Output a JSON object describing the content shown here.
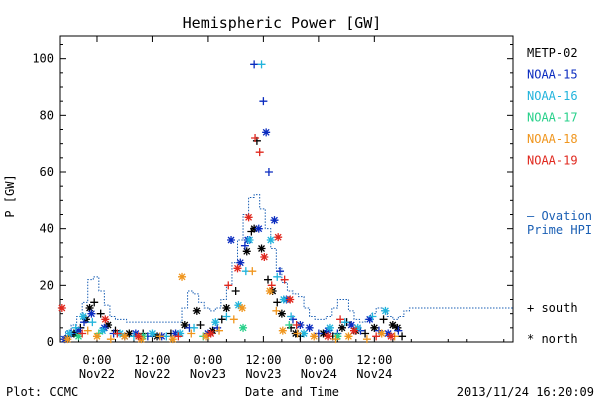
{
  "chart_data": {
    "type": "scatter",
    "title": "Hemispheric Power [GW]",
    "xlabel": "Date and Time",
    "ylabel": "P [GW]",
    "x_unit": "hours",
    "xlim": [
      -4,
      45
    ],
    "ylim": [
      0,
      108
    ],
    "yticks": [
      0,
      20,
      40,
      60,
      80,
      100
    ],
    "xticks": [
      {
        "x": 0,
        "line1": "0:00",
        "line2": "Nov22"
      },
      {
        "x": 6,
        "line1": "12:00",
        "line2": "Nov22"
      },
      {
        "x": 12,
        "line1": "0:00",
        "line2": "Nov23"
      },
      {
        "x": 18,
        "line1": "12:00",
        "line2": "Nov23"
      },
      {
        "x": 24,
        "line1": "0:00",
        "line2": "Nov24"
      },
      {
        "x": 30,
        "line1": "12:00",
        "line2": "Nov24"
      }
    ],
    "legend": {
      "placement": "right",
      "satellites": [
        {
          "name": "METP-02",
          "color": "#000000"
        },
        {
          "name": "NOAA-15",
          "color": "#0a2bbf"
        },
        {
          "name": "NOAA-16",
          "color": "#22b4dc"
        },
        {
          "name": "NOAA-17",
          "color": "#27d08a"
        },
        {
          "name": "NOAA-18",
          "color": "#f0961e"
        },
        {
          "name": "NOAA-19",
          "color": "#e0281e"
        }
      ],
      "ovation_label_line1": "— Ovation",
      "ovation_label_line2": "Prime HPI",
      "ovation_color": "#1a5fb4",
      "south_label": "+ south",
      "north_label": "* north"
    },
    "ovation": [
      [
        -4,
        2
      ],
      [
        -3.4,
        4
      ],
      [
        -2.8,
        6
      ],
      [
        -2.2,
        9
      ],
      [
        -1.6,
        14
      ],
      [
        -1,
        22
      ],
      [
        -0.4,
        23
      ],
      [
        0.2,
        18
      ],
      [
        0.8,
        13
      ],
      [
        1.4,
        9
      ],
      [
        2,
        8
      ],
      [
        2.6,
        8
      ],
      [
        3.2,
        7
      ],
      [
        3.8,
        7
      ],
      [
        4.4,
        7
      ],
      [
        5,
        7
      ],
      [
        5.6,
        7
      ],
      [
        6.2,
        7
      ],
      [
        6.8,
        7
      ],
      [
        7.4,
        7
      ],
      [
        8,
        7
      ],
      [
        8.6,
        7
      ],
      [
        9.2,
        12
      ],
      [
        9.8,
        18
      ],
      [
        10.4,
        17
      ],
      [
        11,
        14
      ],
      [
        11.6,
        12
      ],
      [
        12.2,
        11
      ],
      [
        12.8,
        12
      ],
      [
        13.4,
        15
      ],
      [
        14,
        20
      ],
      [
        14.6,
        28
      ],
      [
        15.2,
        36
      ],
      [
        15.8,
        45
      ],
      [
        16.4,
        51
      ],
      [
        17,
        52
      ],
      [
        17.6,
        47
      ],
      [
        18.2,
        40
      ],
      [
        18.8,
        33
      ],
      [
        19.4,
        26
      ],
      [
        20,
        21
      ],
      [
        20.6,
        18
      ],
      [
        21.2,
        17
      ],
      [
        21.8,
        16
      ],
      [
        22.4,
        12
      ],
      [
        23,
        9
      ],
      [
        23.6,
        8
      ],
      [
        24.2,
        8
      ],
      [
        24.8,
        9
      ],
      [
        25.4,
        12
      ],
      [
        26,
        15
      ],
      [
        26.6,
        15
      ],
      [
        27.2,
        11
      ],
      [
        27.8,
        8
      ],
      [
        28.4,
        7
      ],
      [
        29,
        8
      ],
      [
        29.6,
        10
      ],
      [
        30.2,
        12
      ],
      [
        30.8,
        11
      ],
      [
        31.4,
        9
      ],
      [
        32,
        8
      ],
      [
        32.6,
        9
      ],
      [
        33.2,
        11
      ],
      [
        33.8,
        12
      ],
      [
        34.4,
        12
      ]
    ],
    "series": [
      {
        "name": "METP-02",
        "color": "#000000",
        "points": [
          [
            -3,
            2,
            "+"
          ],
          [
            -2.5,
            3,
            "*"
          ],
          [
            -1.8,
            5,
            "+"
          ],
          [
            -1.2,
            8,
            "*"
          ],
          [
            -0.8,
            12,
            "*"
          ],
          [
            -0.3,
            14,
            "+"
          ],
          [
            0.4,
            10,
            "+"
          ],
          [
            1.2,
            6,
            "*"
          ],
          [
            2.0,
            4,
            "+"
          ],
          [
            3.5,
            3,
            "*"
          ],
          [
            5.0,
            3,
            "+"
          ],
          [
            6.5,
            2,
            "*"
          ],
          [
            8.0,
            3,
            "+"
          ],
          [
            9.5,
            6,
            "*"
          ],
          [
            10.8,
            11,
            "*"
          ],
          [
            11.2,
            6,
            "+"
          ],
          [
            12.5,
            4,
            "*"
          ],
          [
            13.5,
            8,
            "+"
          ],
          [
            14.0,
            12,
            "*"
          ],
          [
            15.0,
            18,
            "+"
          ],
          [
            16.2,
            32,
            "*"
          ],
          [
            16.7,
            39,
            "+"
          ],
          [
            17.0,
            40,
            "*"
          ],
          [
            17.3,
            71,
            "+"
          ],
          [
            17.8,
            33,
            "*"
          ],
          [
            18.5,
            22,
            "+"
          ],
          [
            19.0,
            18,
            "*"
          ],
          [
            19.5,
            14,
            "+"
          ],
          [
            20.0,
            10,
            "*"
          ],
          [
            21.0,
            5,
            "+"
          ],
          [
            21.5,
            3,
            "*"
          ],
          [
            22.0,
            2,
            "+"
          ],
          [
            24.5,
            3,
            "*"
          ],
          [
            25.5,
            2,
            "+"
          ],
          [
            26.5,
            5,
            "*"
          ],
          [
            27.0,
            7,
            "+"
          ],
          [
            28.0,
            4,
            "*"
          ],
          [
            29.0,
            3,
            "+"
          ],
          [
            30.0,
            5,
            "*"
          ],
          [
            31.0,
            8,
            "+"
          ],
          [
            32.0,
            6,
            "*"
          ],
          [
            32.5,
            5,
            "*"
          ],
          [
            33.0,
            2,
            "+"
          ]
        ]
      },
      {
        "name": "NOAA-15",
        "color": "#0a2bbf",
        "points": [
          [
            -3.5,
            1,
            "*"
          ],
          [
            -2.8,
            3,
            "+"
          ],
          [
            -2.0,
            4,
            "*"
          ],
          [
            -1.4,
            7,
            "+"
          ],
          [
            -0.6,
            10,
            "*"
          ],
          [
            0.8,
            5,
            "*"
          ],
          [
            1.8,
            3,
            "+"
          ],
          [
            3.0,
            2,
            "*"
          ],
          [
            4.2,
            3,
            "*"
          ],
          [
            5.5,
            2,
            "+"
          ],
          [
            7.0,
            2,
            "*"
          ],
          [
            8.5,
            3,
            "*"
          ],
          [
            10.0,
            5,
            "+"
          ],
          [
            12.0,
            3,
            "*"
          ],
          [
            13.0,
            5,
            "+"
          ],
          [
            14.5,
            36,
            "*"
          ],
          [
            15.5,
            28,
            "*"
          ],
          [
            16.0,
            34,
            "+"
          ],
          [
            16.3,
            36,
            "*"
          ],
          [
            17.0,
            98,
            "+"
          ],
          [
            17.5,
            40,
            "*"
          ],
          [
            18.0,
            85,
            "+"
          ],
          [
            18.3,
            74,
            "*"
          ],
          [
            18.6,
            60,
            "+"
          ],
          [
            19.2,
            43,
            "*"
          ],
          [
            19.8,
            25,
            "+"
          ],
          [
            20.5,
            15,
            "*"
          ],
          [
            21.2,
            8,
            "+"
          ],
          [
            22.0,
            6,
            "*"
          ],
          [
            23.0,
            5,
            "*"
          ],
          [
            24.0,
            3,
            "+"
          ],
          [
            25.0,
            4,
            "*"
          ],
          [
            26.0,
            3,
            "+"
          ],
          [
            27.5,
            6,
            "*"
          ],
          [
            28.5,
            4,
            "+"
          ],
          [
            29.5,
            8,
            "*"
          ],
          [
            30.5,
            4,
            "+"
          ],
          [
            31.5,
            3,
            "*"
          ],
          [
            32.6,
            4,
            "+"
          ]
        ]
      },
      {
        "name": "NOAA-16",
        "color": "#22b4dc",
        "points": [
          [
            -3.0,
            3,
            "*"
          ],
          [
            -2.3,
            5,
            "+"
          ],
          [
            -1.5,
            9,
            "*"
          ],
          [
            -0.5,
            7,
            "+"
          ],
          [
            0.6,
            4,
            "*"
          ],
          [
            2.5,
            3,
            "*"
          ],
          [
            4.0,
            2,
            "+"
          ],
          [
            6.0,
            3,
            "*"
          ],
          [
            7.5,
            2,
            "+"
          ],
          [
            9.0,
            3,
            "*"
          ],
          [
            10.5,
            5,
            "+"
          ],
          [
            12.8,
            7,
            "*"
          ],
          [
            14.0,
            9,
            "+"
          ],
          [
            15.3,
            13,
            "*"
          ],
          [
            16.1,
            25,
            "+"
          ],
          [
            16.5,
            36,
            "*"
          ],
          [
            17.8,
            98,
            "+"
          ],
          [
            18.8,
            36,
            "*"
          ],
          [
            19.5,
            23,
            "+"
          ],
          [
            20.2,
            15,
            "*"
          ],
          [
            21.0,
            9,
            "+"
          ],
          [
            22.4,
            3,
            "*"
          ],
          [
            25.2,
            5,
            "*"
          ],
          [
            26.8,
            7,
            "+"
          ],
          [
            28.2,
            5,
            "*"
          ],
          [
            29.8,
            9,
            "+"
          ],
          [
            31.2,
            11,
            "*"
          ]
        ]
      },
      {
        "name": "NOAA-17",
        "color": "#27d08a",
        "points": [
          [
            -2.0,
            2,
            "*"
          ],
          [
            0.2,
            3,
            "+"
          ],
          [
            5.0,
            2,
            "*"
          ],
          [
            11.5,
            2,
            "+"
          ],
          [
            15.8,
            5,
            "*"
          ],
          [
            20.8,
            6,
            "+"
          ],
          [
            26.0,
            2,
            "*"
          ]
        ]
      },
      {
        "name": "NOAA-18",
        "color": "#f0961e",
        "points": [
          [
            -3.2,
            1,
            "*"
          ],
          [
            -1.0,
            4,
            "+"
          ],
          [
            0.0,
            2,
            "*"
          ],
          [
            1.5,
            1,
            "+"
          ],
          [
            3.0,
            2,
            "*"
          ],
          [
            4.8,
            1,
            "*"
          ],
          [
            6.8,
            2,
            "+"
          ],
          [
            8.2,
            1,
            "*"
          ],
          [
            9.2,
            23,
            "*"
          ],
          [
            10.2,
            3,
            "+"
          ],
          [
            11.8,
            2,
            "*"
          ],
          [
            13.2,
            4,
            "+"
          ],
          [
            14.8,
            8,
            "+"
          ],
          [
            15.7,
            12,
            "*"
          ],
          [
            16.8,
            25,
            "+"
          ],
          [
            18.7,
            18,
            "*"
          ],
          [
            19.4,
            11,
            "+"
          ],
          [
            20.1,
            4,
            "*"
          ],
          [
            21.7,
            3,
            "+"
          ],
          [
            23.5,
            2,
            "*"
          ],
          [
            25.8,
            1,
            "+"
          ],
          [
            27.2,
            2,
            "*"
          ],
          [
            29.2,
            1,
            "+"
          ],
          [
            30.8,
            3,
            "*"
          ],
          [
            32.2,
            2,
            "+"
          ]
        ]
      },
      {
        "name": "NOAA-19",
        "color": "#e0281e",
        "points": [
          [
            -3.8,
            12,
            "*"
          ],
          [
            -1.6,
            3,
            "+"
          ],
          [
            0.9,
            8,
            "*"
          ],
          [
            2.2,
            3,
            "+"
          ],
          [
            4.5,
            2,
            "*"
          ],
          [
            8.8,
            2,
            "+"
          ],
          [
            12.3,
            3,
            "*"
          ],
          [
            14.2,
            20,
            "+"
          ],
          [
            15.2,
            26,
            "*"
          ],
          [
            16.4,
            44,
            "*"
          ],
          [
            17.1,
            72,
            "+"
          ],
          [
            17.6,
            67,
            "+"
          ],
          [
            18.1,
            30,
            "*"
          ],
          [
            18.9,
            20,
            "+"
          ],
          [
            19.6,
            37,
            "*"
          ],
          [
            20.3,
            22,
            "+"
          ],
          [
            20.9,
            15,
            "*"
          ],
          [
            21.6,
            6,
            "+"
          ],
          [
            25.0,
            2,
            "*"
          ],
          [
            26.3,
            8,
            "+"
          ],
          [
            27.8,
            4,
            "*"
          ],
          [
            30.2,
            2,
            "+"
          ],
          [
            31.8,
            2,
            "*"
          ]
        ]
      }
    ]
  },
  "footer": {
    "left": "Plot: CCMC",
    "right": "2013/11/24 16:20:09"
  }
}
